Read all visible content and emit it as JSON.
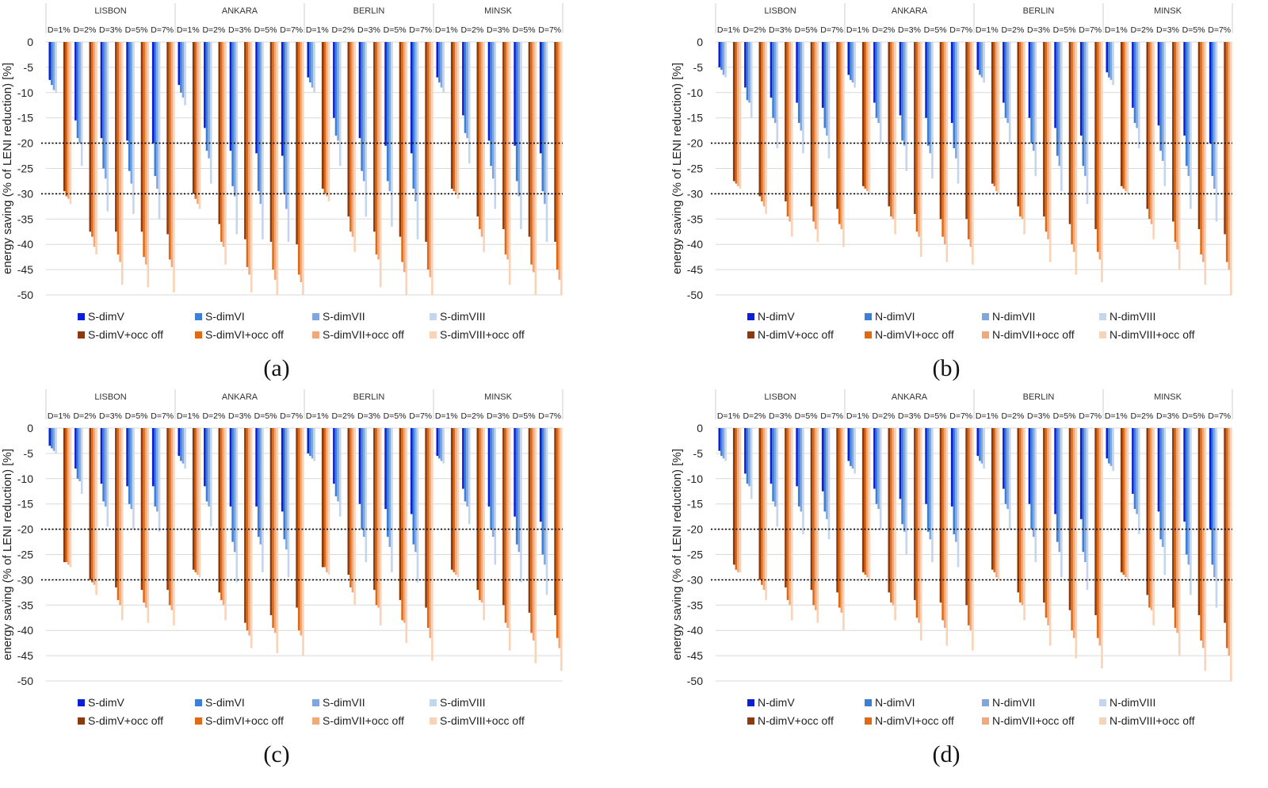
{
  "colors": {
    "blue": [
      "#0a1fd6",
      "#3b7fd9",
      "#7fa7de",
      "#c4d5ee"
    ],
    "orange": [
      "#8b3a0e",
      "#e06a14",
      "#f2a878",
      "#f9d3b7"
    ],
    "gridline": "#d9d9d9",
    "threshold_line": "#000000"
  },
  "chart_data": [
    {
      "type": "bar",
      "panel_label": "(a)",
      "ylabel": "energy saving (% of LENI reduction)  [%]",
      "ylim": [
        -50,
        0
      ],
      "yticks": [
        0,
        -5,
        -10,
        -15,
        -20,
        -25,
        -30,
        -35,
        -40,
        -45,
        -50
      ],
      "reference_lines": [
        -20,
        -30
      ],
      "groups": [
        "LISBON",
        "ANKARA",
        "BERLIN",
        "MINSK"
      ],
      "subgroups": [
        "D=1%",
        "D=2%",
        "D=3%",
        "D=5%",
        "D=7%"
      ],
      "legend": [
        "S-dimV",
        "S-dimVI",
        "S-dimVII",
        "S-dimVIII",
        "S-dimV+occ off",
        "S-dimVI+occ off",
        "S-dimVII+occ off",
        "S-dimVIII+occ off"
      ],
      "series_values": [
        [
          [
            -7.5,
            -8.5,
            -9.5,
            -10,
            -29.5,
            -30.5,
            -31,
            -32
          ],
          [
            -15.5,
            -19,
            -20,
            -24.5,
            -37.5,
            -38.5,
            -40.5,
            -42
          ],
          [
            -19,
            -25,
            -27,
            -33.5,
            -37.5,
            -42,
            -43.5,
            -48
          ],
          [
            -19.5,
            -25.5,
            -28,
            -34,
            -37.5,
            -42.5,
            -44,
            -48.5
          ],
          [
            -20,
            -26.5,
            -29,
            -35,
            -38,
            -43,
            -44.5,
            -49.5
          ]
        ],
        [
          [
            -8.5,
            -10,
            -11,
            -12.5,
            -30,
            -31,
            -32,
            -33
          ],
          [
            -17,
            -21.5,
            -23,
            -28,
            -36,
            -39.5,
            -40.5,
            -44
          ],
          [
            -21.5,
            -28.5,
            -30.5,
            -38,
            -39,
            -44.5,
            -46,
            -49.5
          ],
          [
            -22,
            -29.5,
            -32,
            -39,
            -39.5,
            -45,
            -47,
            -50
          ],
          [
            -22.5,
            -30,
            -33,
            -39.5,
            -40,
            -46,
            -47.5,
            -50
          ]
        ],
        [
          [
            -7,
            -8,
            -9,
            -10,
            -29,
            -30,
            -30.5,
            -31.5
          ],
          [
            -15,
            -18.5,
            -19.5,
            -24.5,
            -34.5,
            -37.5,
            -38.5,
            -41.5
          ],
          [
            -19,
            -25.5,
            -27.5,
            -34.5,
            -37.5,
            -42,
            -43,
            -48.5
          ],
          [
            -20.5,
            -27.5,
            -29.5,
            -36.5,
            -38.5,
            -43.5,
            -45.5,
            -50
          ],
          [
            -22,
            -29,
            -31.5,
            -39,
            -39.5,
            -45,
            -46.5,
            -50
          ]
        ],
        [
          [
            -7,
            -8,
            -9,
            -10,
            -29,
            -29.5,
            -30,
            -31
          ],
          [
            -14.5,
            -18,
            -19,
            -24,
            -34.5,
            -37,
            -38.5,
            -41.5
          ],
          [
            -19.5,
            -24.5,
            -27,
            -33,
            -37,
            -42,
            -43,
            -48
          ],
          [
            -20.5,
            -27.5,
            -30.5,
            -37,
            -38.5,
            -44,
            -45.5,
            -50
          ],
          [
            -22,
            -29.5,
            -32,
            -39.5,
            -39.5,
            -45,
            -47,
            -50
          ]
        ]
      ]
    },
    {
      "type": "bar",
      "panel_label": "(b)",
      "ylabel": "energy saving (% of LENI reduction)  [%]",
      "ylim": [
        -50,
        0
      ],
      "yticks": [
        0,
        -5,
        -10,
        -15,
        -20,
        -25,
        -30,
        -35,
        -40,
        -45,
        -50
      ],
      "reference_lines": [
        -20,
        -30
      ],
      "groups": [
        "LISBON",
        "ANKARA",
        "BERLIN",
        "MINSK"
      ],
      "subgroups": [
        "D=1%",
        "D=2%",
        "D=3%",
        "D=5%",
        "D=7%"
      ],
      "legend": [
        "N-dimV",
        "N-dimVI",
        "N-dimVII",
        "N-dimVIII",
        "N-dimV+occ off",
        "N-dimVI+occ off",
        "N-dimVII+occ off",
        "N-dimVIII+occ off"
      ],
      "series_values": [
        [
          [
            -5,
            -5.5,
            -6.5,
            -7,
            -27.5,
            -28,
            -28.5,
            -29
          ],
          [
            -9,
            -11.5,
            -12,
            -15,
            -30.5,
            -31.5,
            -32.5,
            -34
          ],
          [
            -11,
            -15,
            -16,
            -21,
            -31.5,
            -34.5,
            -35.5,
            -38.5
          ],
          [
            -12,
            -16,
            -17.5,
            -22,
            -32.5,
            -35.5,
            -37,
            -39.5
          ],
          [
            -13,
            -17,
            -18.5,
            -23,
            -33,
            -36,
            -37,
            -40.5
          ]
        ],
        [
          [
            -6.5,
            -7.5,
            -8,
            -9,
            -28.5,
            -29,
            -29.5,
            -30
          ],
          [
            -12,
            -15,
            -16,
            -20,
            -32.5,
            -34.5,
            -35,
            -38
          ],
          [
            -14.5,
            -19.5,
            -20.5,
            -25.5,
            -34,
            -37.5,
            -38.5,
            -42.5
          ],
          [
            -15,
            -20.5,
            -22,
            -27,
            -35,
            -38.5,
            -40,
            -43.5
          ],
          [
            -16,
            -21,
            -23,
            -28,
            -35,
            -39,
            -40.5,
            -44
          ]
        ],
        [
          [
            -5.5,
            -6.5,
            -7,
            -8,
            -28,
            -28.5,
            -29.5,
            -30
          ],
          [
            -12,
            -15,
            -16,
            -20,
            -32.5,
            -34.5,
            -35,
            -38
          ],
          [
            -15,
            -20,
            -21.5,
            -26.5,
            -34.5,
            -37.5,
            -39,
            -43.5
          ],
          [
            -17,
            -22.5,
            -24.5,
            -29.5,
            -36,
            -40,
            -41.5,
            -46
          ],
          [
            -18.5,
            -24.5,
            -26.5,
            -32,
            -37,
            -41.5,
            -43,
            -47.5
          ]
        ],
        [
          [
            -6,
            -7,
            -7.5,
            -8.5,
            -28.5,
            -29,
            -29.5,
            -30
          ],
          [
            -13,
            -16,
            -17,
            -21,
            -33,
            -35,
            -36,
            -39
          ],
          [
            -16.5,
            -21.5,
            -23.5,
            -28.5,
            -35.5,
            -39.5,
            -41,
            -45
          ],
          [
            -18.5,
            -24.5,
            -26.5,
            -33,
            -37,
            -42,
            -43.5,
            -48
          ],
          [
            -20,
            -26.5,
            -29,
            -35.5,
            -38,
            -43.5,
            -45,
            -50
          ]
        ]
      ]
    },
    {
      "type": "bar",
      "panel_label": "(c)",
      "ylabel": "energy saving (% of LENI reduction)  [%]",
      "ylim": [
        -50,
        0
      ],
      "yticks": [
        0,
        -5,
        -10,
        -15,
        -20,
        -25,
        -30,
        -35,
        -40,
        -45,
        -50
      ],
      "reference_lines": [
        -20,
        -30
      ],
      "groups": [
        "LISBON",
        "ANKARA",
        "BERLIN",
        "MINSK"
      ],
      "subgroups": [
        "D=1%",
        "D=2%",
        "D=3%",
        "D=5%",
        "D=7%"
      ],
      "legend": [
        "S-dimV",
        "S-dimVI",
        "S-dimVII",
        "S-dimVIII",
        "S-dimV+occ off",
        "S-dimVI+occ off",
        "S-dimVII+occ off",
        "S-dimVIII+occ off"
      ],
      "series_values": [
        [
          [
            -3.5,
            -4,
            -4.5,
            -5,
            -26.5,
            -26.5,
            -27,
            -27.5
          ],
          [
            -8,
            -10,
            -10.5,
            -13,
            -30,
            -30.5,
            -31,
            -33
          ],
          [
            -11,
            -14.5,
            -15.5,
            -19.5,
            -31.5,
            -34,
            -35,
            -38
          ],
          [
            -11.5,
            -15,
            -16,
            -20,
            -32,
            -34.5,
            -35.5,
            -38.5
          ],
          [
            -11.5,
            -15.5,
            -16.5,
            -20.5,
            -32,
            -35,
            -36,
            -39
          ]
        ],
        [
          [
            -5.5,
            -6.5,
            -7,
            -8,
            -28,
            -28.5,
            -29,
            -29.5
          ],
          [
            -11.5,
            -14.5,
            -15.5,
            -19.5,
            -32.5,
            -34,
            -35,
            -38
          ],
          [
            -15.5,
            -22.5,
            -24.5,
            -30.5,
            -38.5,
            -40,
            -41,
            -43.5
          ],
          [
            -15.5,
            -21.5,
            -23,
            -28.5,
            -37,
            -39.5,
            -40.5,
            -44.5
          ],
          [
            -16.5,
            -22,
            -24,
            -29.5,
            -35.5,
            -40,
            -41,
            -45
          ]
        ],
        [
          [
            -5,
            -5.5,
            -6,
            -6.5,
            -27.5,
            -27.5,
            -28.5,
            -29
          ],
          [
            -11,
            -13.5,
            -14.5,
            -17.5,
            -29,
            -31.5,
            -32.5,
            -35
          ],
          [
            -15,
            -20,
            -21.5,
            -26.5,
            -32,
            -35,
            -35.5,
            -39
          ],
          [
            -16,
            -21.5,
            -23.5,
            -28.5,
            -34,
            -38,
            -38.5,
            -42.5
          ],
          [
            -17,
            -23,
            -24.5,
            -30.5,
            -35.5,
            -39.5,
            -41.5,
            -46
          ]
        ],
        [
          [
            -5.5,
            -6,
            -6.5,
            -7,
            -28,
            -28.5,
            -29,
            -29.5
          ],
          [
            -12,
            -14.5,
            -15.5,
            -19,
            -32,
            -34,
            -34.5,
            -38
          ],
          [
            -15.5,
            -20,
            -21.5,
            -27,
            -35,
            -38.5,
            -39.5,
            -44
          ],
          [
            -17.5,
            -23,
            -24.5,
            -30.5,
            -36.5,
            -40.5,
            -42,
            -46.5
          ],
          [
            -18.5,
            -25,
            -27,
            -33,
            -37,
            -41.5,
            -43.5,
            -48
          ]
        ]
      ]
    },
    {
      "type": "bar",
      "panel_label": "(d)",
      "ylabel": "energy saving (% of LENI reduction)  [%]",
      "ylim": [
        -50,
        0
      ],
      "yticks": [
        0,
        -5,
        -10,
        -15,
        -20,
        -25,
        -30,
        -35,
        -40,
        -45,
        -50
      ],
      "reference_lines": [
        -20,
        -30
      ],
      "groups": [
        "LISBON",
        "ANKARA",
        "BERLIN",
        "MINSK"
      ],
      "subgroups": [
        "D=1%",
        "D=2%",
        "D=3%",
        "D=5%",
        "D=7%"
      ],
      "legend": [
        "N-dimV",
        "N-dimVI",
        "N-dimVII",
        "N-dimVIII",
        "N-dimV+occ off",
        "N-dimVI+occ off",
        "N-dimVII+occ off",
        "N-dimVIII+occ off"
      ],
      "series_values": [
        [
          [
            -4.5,
            -5.5,
            -6,
            -6.5,
            -27,
            -28,
            -28.5,
            -28.5
          ],
          [
            -9,
            -11,
            -11.5,
            -14,
            -30,
            -31,
            -32,
            -34
          ],
          [
            -11,
            -14.5,
            -15.5,
            -19.5,
            -31.5,
            -34,
            -35,
            -38
          ],
          [
            -11.5,
            -15.5,
            -16.5,
            -21,
            -32,
            -35,
            -36,
            -38.5
          ],
          [
            -12.5,
            -16.5,
            -18,
            -22,
            -32.5,
            -35.5,
            -36.5,
            -40
          ]
        ],
        [
          [
            -6.5,
            -7.5,
            -8,
            -9,
            -28.5,
            -29,
            -29.5,
            -30
          ],
          [
            -12,
            -15,
            -16,
            -20,
            -32.5,
            -34.5,
            -35,
            -38
          ],
          [
            -14,
            -19,
            -20.5,
            -25,
            -34,
            -37.5,
            -38.5,
            -42
          ],
          [
            -15,
            -20.5,
            -22,
            -26.5,
            -34.5,
            -38,
            -39.5,
            -43
          ],
          [
            -15.5,
            -21,
            -22.5,
            -27.5,
            -35,
            -39,
            -40,
            -44
          ]
        ],
        [
          [
            -5.5,
            -6.5,
            -7,
            -8,
            -28,
            -28.5,
            -29.5,
            -30
          ],
          [
            -12,
            -15,
            -16,
            -20,
            -32.5,
            -34.5,
            -35,
            -38
          ],
          [
            -15,
            -20,
            -21.5,
            -26.5,
            -34.5,
            -37.5,
            -39,
            -43
          ],
          [
            -17,
            -22.5,
            -24.5,
            -29.5,
            -36,
            -40,
            -41.5,
            -45.5
          ],
          [
            -18,
            -24.5,
            -26.5,
            -32,
            -37,
            -41.5,
            -43,
            -47.5
          ]
        ],
        [
          [
            -6,
            -7,
            -7.5,
            -8.5,
            -28.5,
            -29,
            -29.5,
            -30
          ],
          [
            -13,
            -16,
            -17,
            -21,
            -33,
            -35.5,
            -36,
            -39
          ],
          [
            -16.5,
            -22,
            -23.5,
            -29,
            -35.5,
            -39.5,
            -40.5,
            -45
          ],
          [
            -18.5,
            -25,
            -27,
            -33,
            -37,
            -42,
            -43.5,
            -48
          ],
          [
            -20,
            -27,
            -29.5,
            -35.5,
            -38.5,
            -43.5,
            -45,
            -50
          ]
        ]
      ]
    }
  ]
}
